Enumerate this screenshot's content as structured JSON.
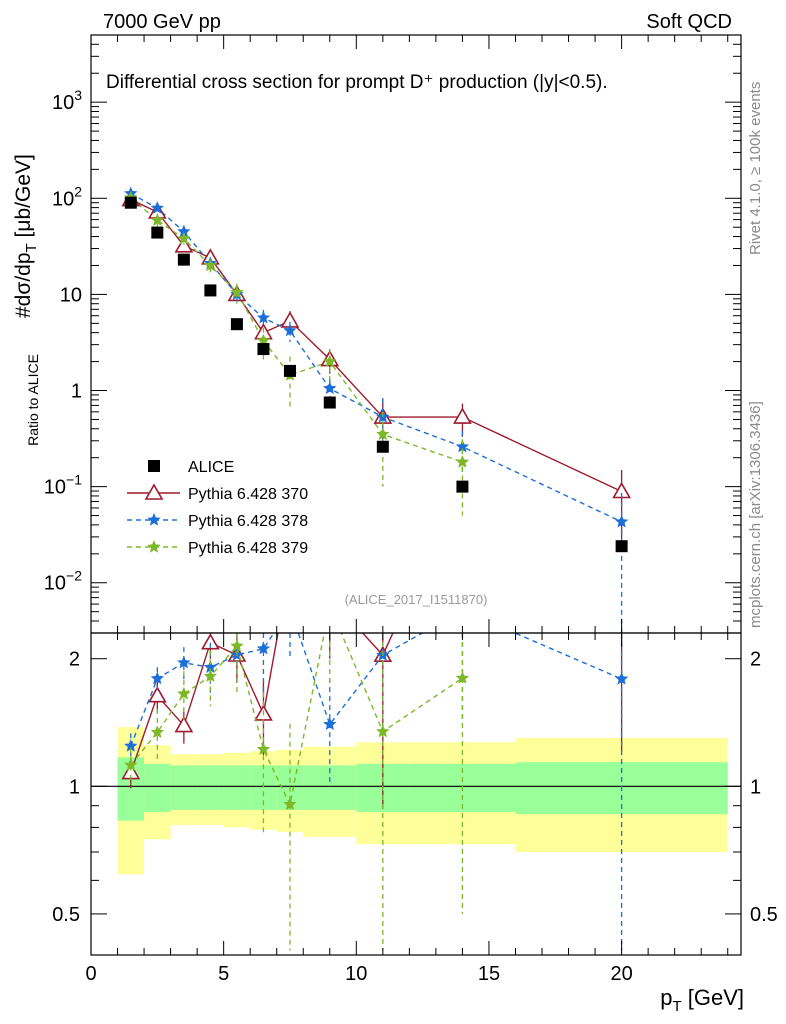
{
  "header": {
    "left": "7000 GeV pp",
    "right": "Soft QCD"
  },
  "side_labels": {
    "top": "Rivet 4.1.0, ≥ 100k events",
    "bottom": "mcplots.cern.ch [arXiv:1306.3436]"
  },
  "chart_data": {
    "type": "scatter",
    "title": "Differential cross section for prompt D⁺ production (|y|<0.5).",
    "analysis_label": "(ALICE_2017_I1511870)",
    "xlabel": "p_T [GeV]",
    "ylabel": "#dσ/dp_T [μb/GeV]",
    "ratio_ylabel": "Ratio to ALICE",
    "xlim": [
      0,
      24.5
    ],
    "ylim": [
      0.003,
      5000
    ],
    "ratio_ylim": [
      0.4,
      2.3
    ],
    "x_ticks": [
      "0",
      "5",
      "10",
      "15",
      "20"
    ],
    "y_ticks": [
      "10^-2",
      "10^-1",
      "1",
      "10",
      "10^2",
      "10^3"
    ],
    "ratio_ticks": [
      "0.5",
      "1",
      "2"
    ],
    "x": [
      1.5,
      2.5,
      3.5,
      4.5,
      5.5,
      6.5,
      7.5,
      9,
      11,
      14,
      20
    ],
    "bin_edges": [
      1,
      2,
      3,
      4,
      5,
      6,
      7,
      8,
      10,
      12,
      16,
      24
    ],
    "legend": [
      "ALICE",
      "Pythia 6.428 370",
      "Pythia 6.428 378",
      "Pythia 6.428 379"
    ],
    "series": [
      {
        "name": "ALICE",
        "color": "#000000",
        "marker": "square",
        "values": [
          90,
          44,
          23,
          11,
          4.9,
          2.7,
          1.6,
          0.75,
          0.26,
          0.1,
          0.024
        ],
        "band_green": [
          0.17,
          0.13,
          0.12,
          0.12,
          0.12,
          0.12,
          0.12,
          0.12,
          0.13,
          0.13,
          0.14
        ],
        "band_yellow": [
          0.38,
          0.25,
          0.19,
          0.19,
          0.2,
          0.21,
          0.22,
          0.24,
          0.27,
          0.27,
          0.3
        ]
      },
      {
        "name": "Pythia 6.428 370",
        "color": "#9e1a2e",
        "marker": "triangle",
        "line": "solid",
        "values": [
          97,
          72,
          32,
          24,
          10,
          4.0,
          5.3,
          2.1,
          0.53,
          0.53,
          0.089
        ],
        "errors": [
          8,
          6,
          3,
          2,
          1.4,
          0.8,
          1.4,
          0.6,
          0.3,
          0.2,
          0.06
        ]
      },
      {
        "name": "Pythia 6.428 378",
        "color": "#1c6fd8",
        "marker": "star",
        "line": "dashed",
        "values": [
          112,
          79,
          45,
          21,
          10,
          5.7,
          4.2,
          1.05,
          0.53,
          0.26,
          0.043
        ],
        "errors": [
          8,
          5,
          4,
          3,
          1.5,
          1.2,
          1,
          0.3,
          0.3,
          0.12,
          0.043
        ]
      },
      {
        "name": "Pythia 6.428 379",
        "color": "#7cb828",
        "marker": "star",
        "line": "dashed",
        "values": [
          101,
          59,
          38,
          20,
          10.5,
          3.3,
          1.45,
          2.0,
          0.35,
          0.18,
          0.0
        ],
        "errors": [
          10,
          8,
          5,
          3,
          2.5,
          1.2,
          0.8,
          0.7,
          0.25,
          0.13,
          0.0
        ]
      }
    ]
  }
}
